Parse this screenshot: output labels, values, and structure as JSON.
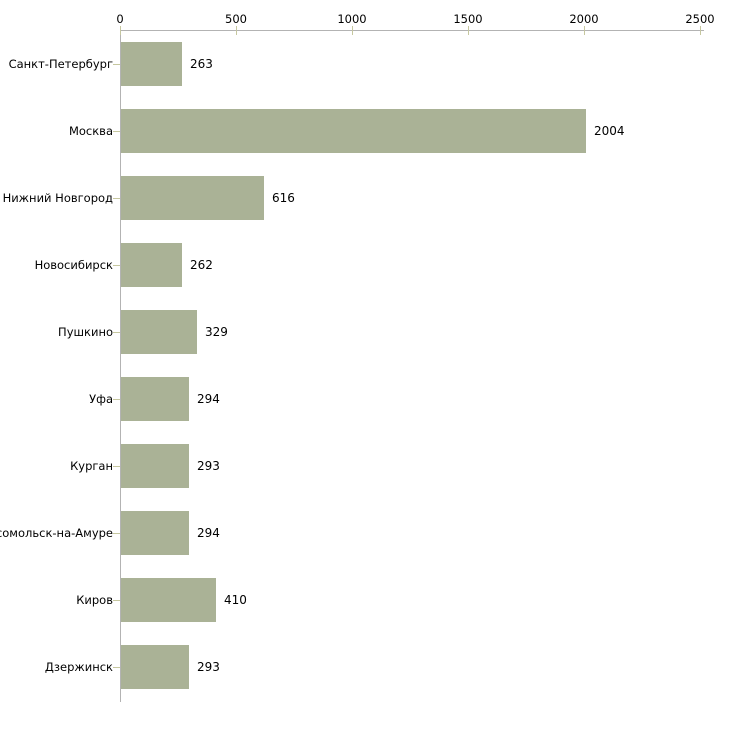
{
  "chart_data": {
    "type": "bar",
    "orientation": "horizontal",
    "title": "",
    "xlabel": "",
    "ylabel": "",
    "categories": [
      "Санкт-Петербург",
      "Москва",
      "Нижний Новгород",
      "Новосибирск",
      "Пушкино",
      "Уфа",
      "Курган",
      "мсомольск-на-Амуре",
      "Киров",
      "Дзержинск"
    ],
    "values": [
      263,
      2004,
      616,
      262,
      329,
      294,
      293,
      294,
      410,
      293
    ],
    "value_labels": [
      "263",
      "2004",
      "616",
      "262",
      "329",
      "294",
      "293",
      "294",
      "410",
      "293"
    ],
    "x_ticks": [
      0,
      500,
      1000,
      1500,
      2000,
      2500
    ],
    "x_tick_labels": [
      "0",
      "500",
      "1000",
      "1500",
      "2000",
      "2500"
    ],
    "xlim": [
      0,
      2500
    ],
    "axis_position": "top",
    "grid": false,
    "legend": null,
    "colors": {
      "bar_fill": "#aab296",
      "axis_line": "#b3b3b3",
      "tick_mark": "#c6c79f",
      "text": "#000000",
      "background": "#ffffff"
    }
  }
}
